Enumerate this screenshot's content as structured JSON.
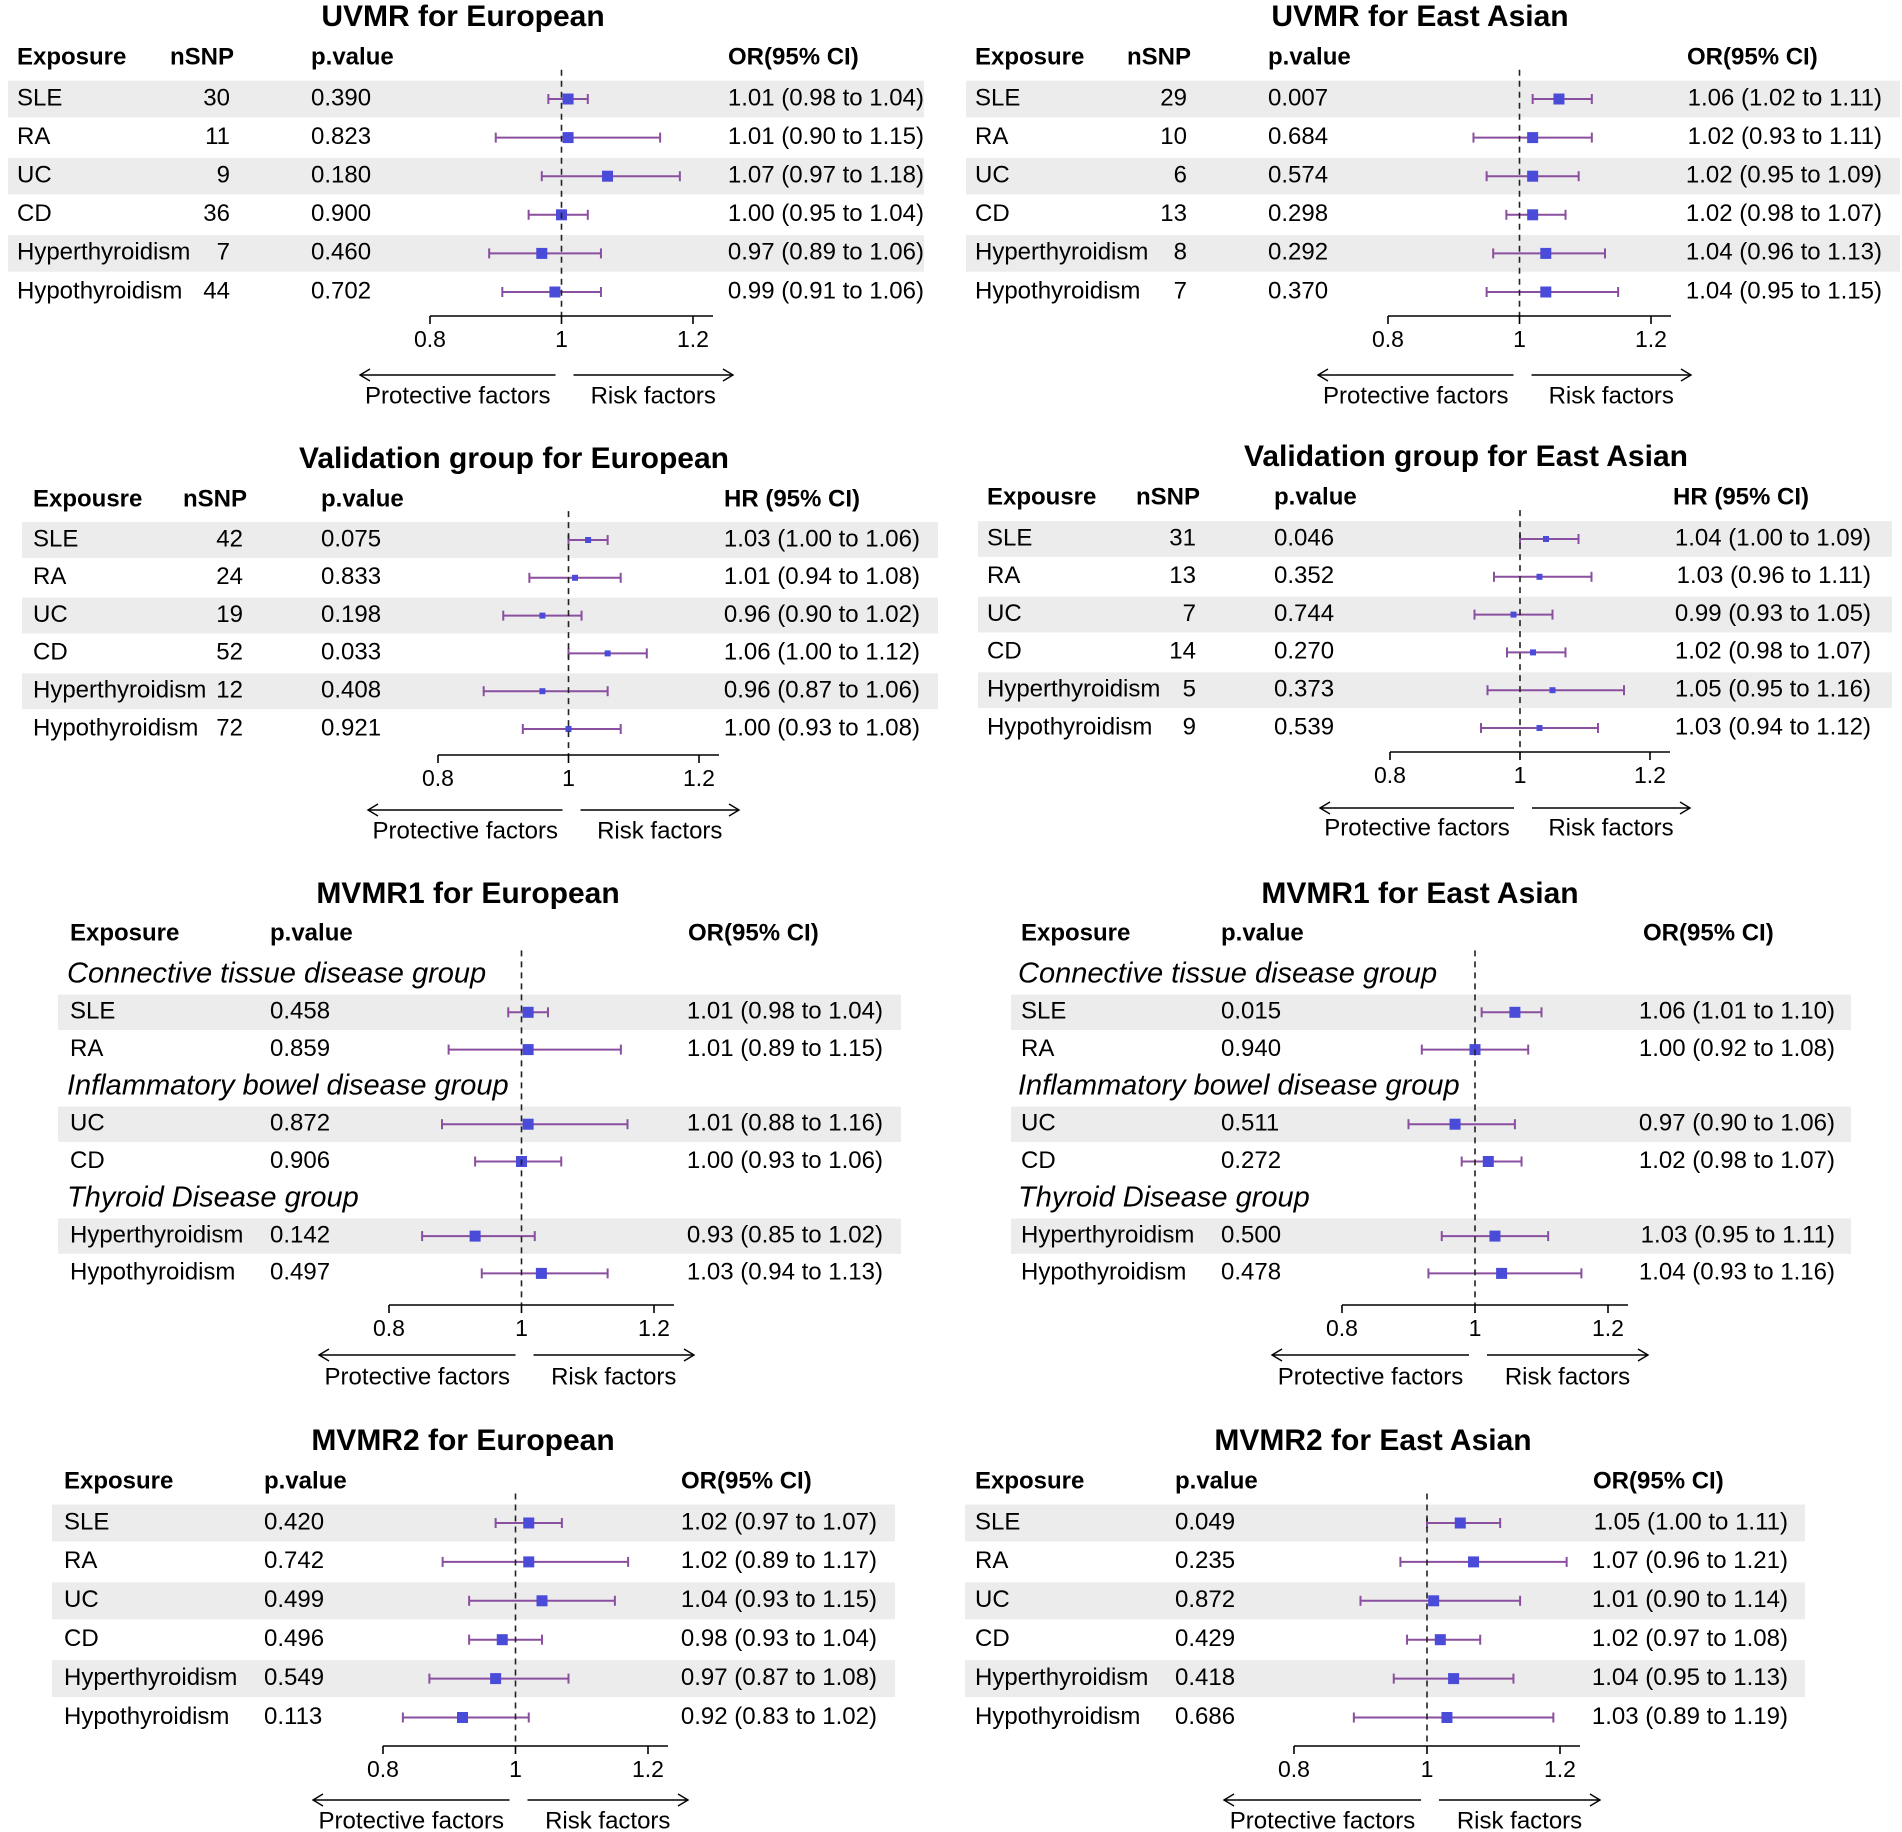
{
  "chart_data": [
    {
      "type": "forest",
      "title": "UVMR for European",
      "headers": {
        "exposure": "Exposure",
        "nsnp": "nSNP",
        "pvalue": "p.value",
        "effect": "OR(95% CI)"
      },
      "xlim": [
        0.8,
        1.2
      ],
      "ticks": [
        "0.8",
        "1",
        "1.2"
      ],
      "null_value": 1,
      "direction_labels": {
        "left": "Protective factors",
        "right": "Risk factors"
      },
      "rows": [
        {
          "exposure": "SLE",
          "nsnp": "30",
          "pvalue": "0.390",
          "est": 1.01,
          "lo": 0.98,
          "hi": 1.04,
          "label": "1.01 (0.98 to 1.04)"
        },
        {
          "exposure": "RA",
          "nsnp": "11",
          "pvalue": "0.823",
          "est": 1.01,
          "lo": 0.9,
          "hi": 1.15,
          "label": "1.01 (0.90 to 1.15)"
        },
        {
          "exposure": "UC",
          "nsnp": "9",
          "pvalue": "0.180",
          "est": 1.07,
          "lo": 0.97,
          "hi": 1.18,
          "label": "1.07 (0.97 to 1.18)"
        },
        {
          "exposure": "CD",
          "nsnp": "36",
          "pvalue": "0.900",
          "est": 1.0,
          "lo": 0.95,
          "hi": 1.04,
          "label": "1.00 (0.95 to 1.04)"
        },
        {
          "exposure": "Hyperthyroidism",
          "nsnp": "7",
          "pvalue": "0.460",
          "est": 0.97,
          "lo": 0.89,
          "hi": 1.06,
          "label": "0.97 (0.89 to 1.06)"
        },
        {
          "exposure": "Hypothyroidism",
          "nsnp": "44",
          "pvalue": "0.702",
          "est": 0.99,
          "lo": 0.91,
          "hi": 1.06,
          "label": "0.99 (0.91 to 1.06)"
        }
      ]
    },
    {
      "type": "forest",
      "title": "UVMR for East Asian",
      "headers": {
        "exposure": "Exposure",
        "nsnp": "nSNP",
        "pvalue": "p.value",
        "effect": "OR(95% CI)"
      },
      "xlim": [
        0.8,
        1.2
      ],
      "ticks": [
        "0.8",
        "1",
        "1.2"
      ],
      "null_value": 1,
      "direction_labels": {
        "left": "Protective factors",
        "right": "Risk factors"
      },
      "rows": [
        {
          "exposure": "SLE",
          "nsnp": "29",
          "pvalue": "0.007",
          "est": 1.06,
          "lo": 1.02,
          "hi": 1.11,
          "label": "1.06 (1.02 to 1.11)"
        },
        {
          "exposure": "RA",
          "nsnp": "10",
          "pvalue": "0.684",
          "est": 1.02,
          "lo": 0.93,
          "hi": 1.11,
          "label": "1.02 (0.93 to 1.11)"
        },
        {
          "exposure": "UC",
          "nsnp": "6",
          "pvalue": "0.574",
          "est": 1.02,
          "lo": 0.95,
          "hi": 1.09,
          "label": "1.02 (0.95 to 1.09)"
        },
        {
          "exposure": "CD",
          "nsnp": "13",
          "pvalue": "0.298",
          "est": 1.02,
          "lo": 0.98,
          "hi": 1.07,
          "label": "1.02 (0.98 to 1.07)"
        },
        {
          "exposure": "Hyperthyroidism",
          "nsnp": "8",
          "pvalue": "0.292",
          "est": 1.04,
          "lo": 0.96,
          "hi": 1.13,
          "label": "1.04 (0.96 to 1.13)"
        },
        {
          "exposure": "Hypothyroidism",
          "nsnp": "7",
          "pvalue": "0.370",
          "est": 1.04,
          "lo": 0.95,
          "hi": 1.15,
          "label": "1.04 (0.95 to 1.15)"
        }
      ]
    },
    {
      "type": "forest",
      "title": "Validation group for European",
      "headers": {
        "exposure": "Expousre",
        "nsnp": "nSNP",
        "pvalue": "p.value",
        "effect": "HR (95% CI)"
      },
      "xlim": [
        0.8,
        1.2
      ],
      "ticks": [
        "0.8",
        "1",
        "1.2"
      ],
      "null_value": 1,
      "direction_labels": {
        "left": "Protective factors",
        "right": "Risk factors"
      },
      "rows": [
        {
          "exposure": "SLE",
          "nsnp": "42",
          "pvalue": "0.075",
          "est": 1.03,
          "lo": 1.0,
          "hi": 1.06,
          "label": "1.03 (1.00 to 1.06)"
        },
        {
          "exposure": "RA",
          "nsnp": "24",
          "pvalue": "0.833",
          "est": 1.01,
          "lo": 0.94,
          "hi": 1.08,
          "label": "1.01 (0.94 to 1.08)"
        },
        {
          "exposure": "UC",
          "nsnp": "19",
          "pvalue": "0.198",
          "est": 0.96,
          "lo": 0.9,
          "hi": 1.02,
          "label": "0.96 (0.90 to 1.02)"
        },
        {
          "exposure": "CD",
          "nsnp": "52",
          "pvalue": "0.033",
          "est": 1.06,
          "lo": 1.0,
          "hi": 1.12,
          "label": "1.06 (1.00 to 1.12)"
        },
        {
          "exposure": "Hyperthyroidism",
          "nsnp": "12",
          "pvalue": "0.408",
          "est": 0.96,
          "lo": 0.87,
          "hi": 1.06,
          "label": "0.96 (0.87 to 1.06)"
        },
        {
          "exposure": "Hypothyroidism",
          "nsnp": "72",
          "pvalue": "0.921",
          "est": 1.0,
          "lo": 0.93,
          "hi": 1.08,
          "label": "1.00 (0.93 to 1.08)"
        }
      ]
    },
    {
      "type": "forest",
      "title": "Validation group for East Asian",
      "headers": {
        "exposure": "Expousre",
        "nsnp": "nSNP",
        "pvalue": "p.value",
        "effect": "HR (95% CI)"
      },
      "xlim": [
        0.8,
        1.2
      ],
      "ticks": [
        "0.8",
        "1",
        "1.2"
      ],
      "null_value": 1,
      "direction_labels": {
        "left": "Protective factors",
        "right": "Risk factors"
      },
      "rows": [
        {
          "exposure": "SLE",
          "nsnp": "31",
          "pvalue": "0.046",
          "est": 1.04,
          "lo": 1.0,
          "hi": 1.09,
          "label": "1.04 (1.00 to 1.09)"
        },
        {
          "exposure": "RA",
          "nsnp": "13",
          "pvalue": "0.352",
          "est": 1.03,
          "lo": 0.96,
          "hi": 1.11,
          "label": "1.03 (0.96 to 1.11)"
        },
        {
          "exposure": "UC",
          "nsnp": "7",
          "pvalue": "0.744",
          "est": 0.99,
          "lo": 0.93,
          "hi": 1.05,
          "label": "0.99 (0.93 to 1.05)"
        },
        {
          "exposure": "CD",
          "nsnp": "14",
          "pvalue": "0.270",
          "est": 1.02,
          "lo": 0.98,
          "hi": 1.07,
          "label": "1.02 (0.98 to 1.07)"
        },
        {
          "exposure": "Hyperthyroidism",
          "nsnp": "5",
          "pvalue": "0.373",
          "est": 1.05,
          "lo": 0.95,
          "hi": 1.16,
          "label": "1.05 (0.95 to 1.16)"
        },
        {
          "exposure": "Hypothyroidism",
          "nsnp": "9",
          "pvalue": "0.539",
          "est": 1.03,
          "lo": 0.94,
          "hi": 1.12,
          "label": "1.03 (0.94 to 1.12)"
        }
      ]
    },
    {
      "type": "forest",
      "title": "MVMR1 for European",
      "headers": {
        "exposure": "Exposure",
        "pvalue": "p.value",
        "effect": "OR(95% CI)"
      },
      "xlim": [
        0.8,
        1.2
      ],
      "ticks": [
        "0.8",
        "1",
        "1.2"
      ],
      "null_value": 1,
      "direction_labels": {
        "left": "Protective factors",
        "right": "Risk factors"
      },
      "rows": [
        {
          "group": "Connective tissue disease group"
        },
        {
          "exposure": "SLE",
          "pvalue": "0.458",
          "est": 1.01,
          "lo": 0.98,
          "hi": 1.04,
          "label": "1.01 (0.98 to 1.04)"
        },
        {
          "exposure": "RA",
          "pvalue": "0.859",
          "est": 1.01,
          "lo": 0.89,
          "hi": 1.15,
          "label": "1.01 (0.89 to 1.15)"
        },
        {
          "group": "Inflammatory bowel disease group"
        },
        {
          "exposure": "UC",
          "pvalue": "0.872",
          "est": 1.01,
          "lo": 0.88,
          "hi": 1.16,
          "label": "1.01 (0.88 to 1.16)"
        },
        {
          "exposure": "CD",
          "pvalue": "0.906",
          "est": 1.0,
          "lo": 0.93,
          "hi": 1.06,
          "label": "1.00 (0.93 to 1.06)"
        },
        {
          "group": "Thyroid Disease group"
        },
        {
          "exposure": "Hyperthyroidism",
          "pvalue": "0.142",
          "est": 0.93,
          "lo": 0.85,
          "hi": 1.02,
          "label": "0.93 (0.85 to 1.02)"
        },
        {
          "exposure": "Hypothyroidism",
          "pvalue": "0.497",
          "est": 1.03,
          "lo": 0.94,
          "hi": 1.13,
          "label": "1.03 (0.94 to 1.13)"
        }
      ]
    },
    {
      "type": "forest",
      "title": "MVMR1 for East Asian",
      "headers": {
        "exposure": "Exposure",
        "pvalue": "p.value",
        "effect": "OR(95% CI)"
      },
      "xlim": [
        0.8,
        1.2
      ],
      "ticks": [
        "0.8",
        "1",
        "1.2"
      ],
      "null_value": 1,
      "direction_labels": {
        "left": "Protective factors",
        "right": "Risk factors"
      },
      "rows": [
        {
          "group": "Connective tissue disease group"
        },
        {
          "exposure": "SLE",
          "pvalue": "0.015",
          "est": 1.06,
          "lo": 1.01,
          "hi": 1.1,
          "label": "1.06 (1.01 to 1.10)"
        },
        {
          "exposure": "RA",
          "pvalue": "0.940",
          "est": 1.0,
          "lo": 0.92,
          "hi": 1.08,
          "label": "1.00 (0.92 to 1.08)"
        },
        {
          "group": "Inflammatory bowel disease group"
        },
        {
          "exposure": "UC",
          "pvalue": "0.511",
          "est": 0.97,
          "lo": 0.9,
          "hi": 1.06,
          "label": "0.97 (0.90 to 1.06)"
        },
        {
          "exposure": "CD",
          "pvalue": "0.272",
          "est": 1.02,
          "lo": 0.98,
          "hi": 1.07,
          "label": "1.02 (0.98 to 1.07)"
        },
        {
          "group": "Thyroid Disease group"
        },
        {
          "exposure": "Hyperthyroidism",
          "pvalue": "0.500",
          "est": 1.03,
          "lo": 0.95,
          "hi": 1.11,
          "label": "1.03 (0.95 to 1.11)"
        },
        {
          "exposure": "Hypothyroidism",
          "pvalue": "0.478",
          "est": 1.04,
          "lo": 0.93,
          "hi": 1.16,
          "label": "1.04 (0.93 to 1.16)"
        }
      ]
    },
    {
      "type": "forest",
      "title": "MVMR2 for European",
      "headers": {
        "exposure": "Exposure",
        "pvalue": "p.value",
        "effect": "OR(95% CI)"
      },
      "xlim": [
        0.8,
        1.2
      ],
      "ticks": [
        "0.8",
        "1",
        "1.2"
      ],
      "null_value": 1,
      "direction_labels": {
        "left": "Protective factors",
        "right": "Risk factors"
      },
      "rows": [
        {
          "exposure": "SLE",
          "pvalue": "0.420",
          "est": 1.02,
          "lo": 0.97,
          "hi": 1.07,
          "label": "1.02 (0.97 to 1.07)"
        },
        {
          "exposure": "RA",
          "pvalue": "0.742",
          "est": 1.02,
          "lo": 0.89,
          "hi": 1.17,
          "label": "1.02 (0.89 to 1.17)"
        },
        {
          "exposure": "UC",
          "pvalue": "0.499",
          "est": 1.04,
          "lo": 0.93,
          "hi": 1.15,
          "label": "1.04 (0.93 to 1.15)"
        },
        {
          "exposure": "CD",
          "pvalue": "0.496",
          "est": 0.98,
          "lo": 0.93,
          "hi": 1.04,
          "label": "0.98 (0.93 to 1.04)"
        },
        {
          "exposure": "Hyperthyroidism",
          "pvalue": "0.549",
          "est": 0.97,
          "lo": 0.87,
          "hi": 1.08,
          "label": "0.97 (0.87 to 1.08)"
        },
        {
          "exposure": "Hypothyroidism",
          "pvalue": "0.113",
          "est": 0.92,
          "lo": 0.83,
          "hi": 1.02,
          "label": "0.92 (0.83 to 1.02)"
        }
      ]
    },
    {
      "type": "forest",
      "title": "MVMR2 for East Asian",
      "headers": {
        "exposure": "Exposure",
        "pvalue": "p.value",
        "effect": "OR(95% CI)"
      },
      "xlim": [
        0.8,
        1.2
      ],
      "ticks": [
        "0.8",
        "1",
        "1.2"
      ],
      "null_value": 1,
      "direction_labels": {
        "left": "Protective factors",
        "right": "Risk factors"
      },
      "rows": [
        {
          "exposure": "SLE",
          "pvalue": "0.049",
          "est": 1.05,
          "lo": 1.0,
          "hi": 1.11,
          "label": "1.05 (1.00 to 1.11)"
        },
        {
          "exposure": "RA",
          "pvalue": "0.235",
          "est": 1.07,
          "lo": 0.96,
          "hi": 1.21,
          "label": "1.07 (0.96 to 1.21)"
        },
        {
          "exposure": "UC",
          "pvalue": "0.872",
          "est": 1.01,
          "lo": 0.9,
          "hi": 1.14,
          "label": "1.01 (0.90 to 1.14)"
        },
        {
          "exposure": "CD",
          "pvalue": "0.429",
          "est": 1.02,
          "lo": 0.97,
          "hi": 1.08,
          "label": "1.02 (0.97 to 1.08)"
        },
        {
          "exposure": "Hyperthyroidism",
          "pvalue": "0.418",
          "est": 1.04,
          "lo": 0.95,
          "hi": 1.13,
          "label": "1.04 (0.95 to 1.13)"
        },
        {
          "exposure": "Hypothyroidism",
          "pvalue": "0.686",
          "est": 1.03,
          "lo": 0.89,
          "hi": 1.19,
          "label": "1.03 (0.89 to 1.19)"
        }
      ]
    }
  ],
  "colors": {
    "point": "#4b4bd9",
    "whisker": "#8a4f9e",
    "stripe": "#ececec",
    "text": "#000000"
  }
}
